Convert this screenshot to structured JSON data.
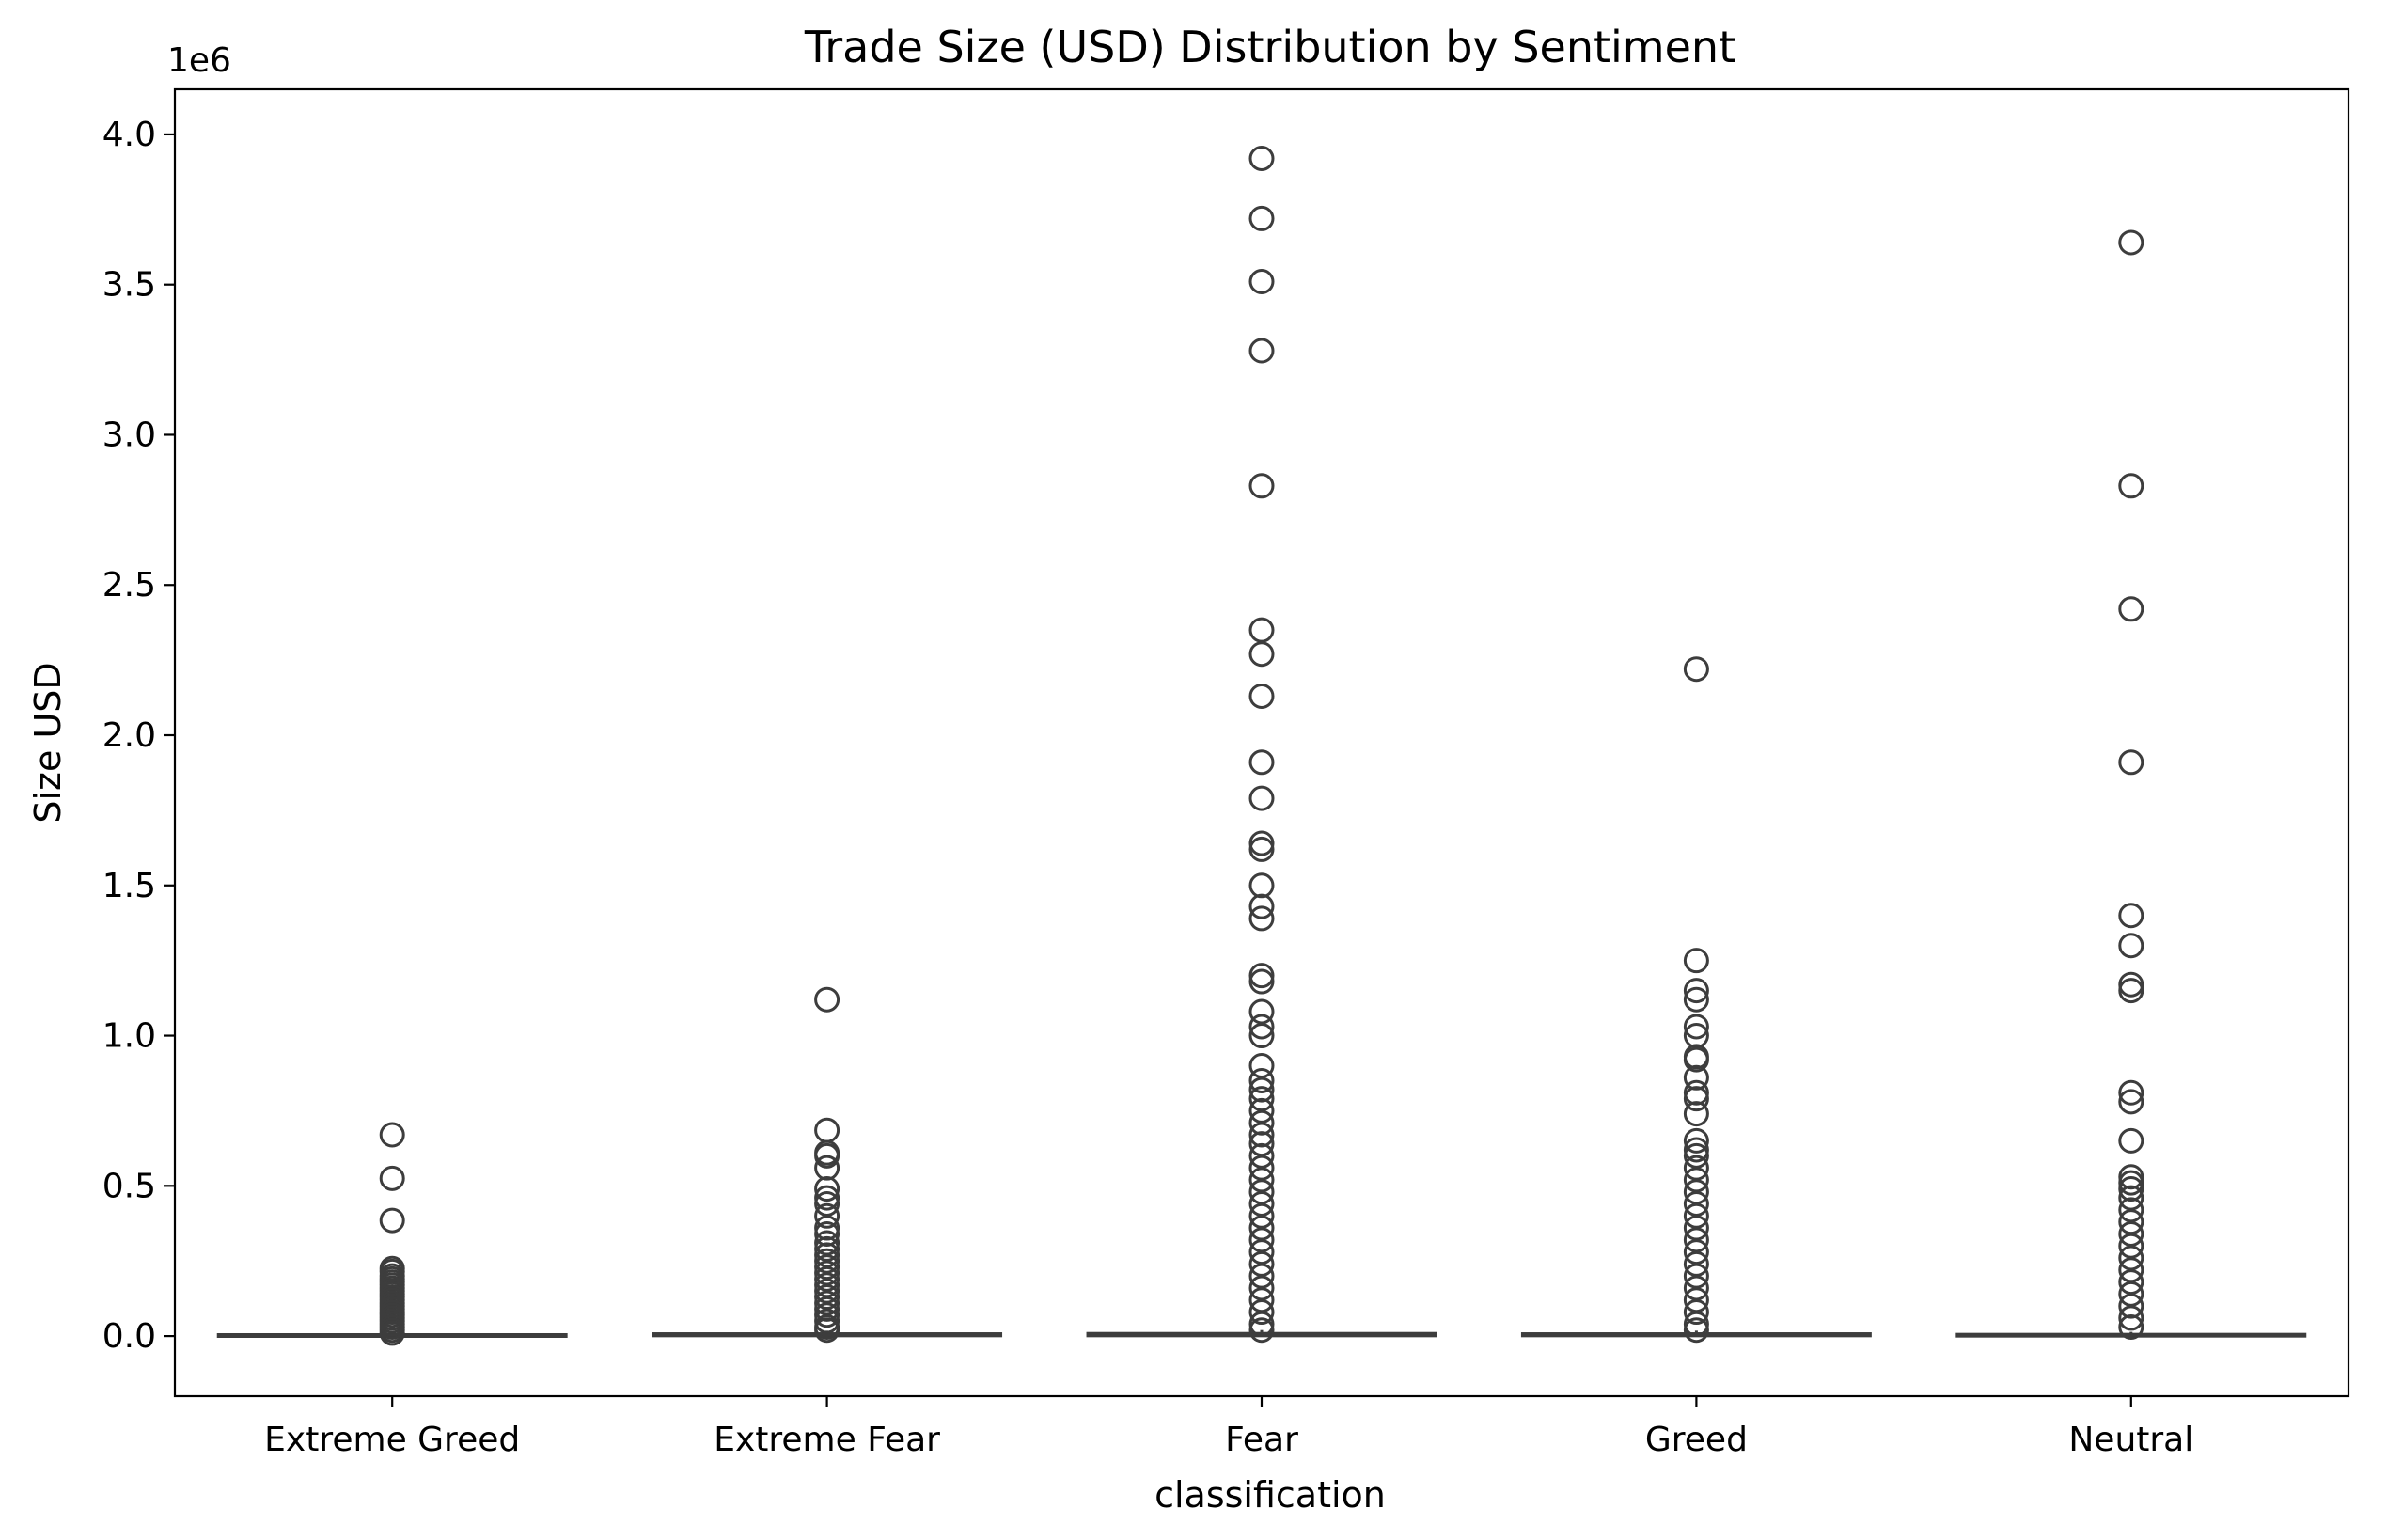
{
  "chart_data": {
    "type": "box",
    "title": "Trade Size (USD) Distribution by Sentiment",
    "xlabel": "classification",
    "ylabel": "Size USD",
    "y_offset_label": "1e6",
    "y_unit_multiplier": 1000000,
    "ylim": [
      -0.2,
      4.15
    ],
    "yticks": [
      {
        "value": 0.0,
        "label": "0.0"
      },
      {
        "value": 0.5,
        "label": "0.5"
      },
      {
        "value": 1.0,
        "label": "1.0"
      },
      {
        "value": 1.5,
        "label": "1.5"
      },
      {
        "value": 2.0,
        "label": "2.0"
      },
      {
        "value": 2.5,
        "label": "2.5"
      },
      {
        "value": 3.0,
        "label": "3.0"
      },
      {
        "value": 3.5,
        "label": "3.5"
      },
      {
        "value": 4.0,
        "label": "4.0"
      }
    ],
    "grid": false,
    "colors": {
      "box_edge": "#3d3d3d",
      "axes": "#000000"
    },
    "categories": [
      "Extreme Greed",
      "Extreme Fear",
      "Fear",
      "Greed",
      "Neutral"
    ],
    "boxes": [
      {
        "category": "Extreme Greed",
        "q1": 0.0006,
        "median": 0.0015,
        "q3": 0.005,
        "whisker_low": 0.0,
        "whisker_high": 0.012,
        "outliers": [
          0.67,
          0.525,
          0.385,
          0.225,
          0.215,
          0.2,
          0.19,
          0.18,
          0.17,
          0.16,
          0.15,
          0.14,
          0.13,
          0.12,
          0.11,
          0.1,
          0.09,
          0.08,
          0.07,
          0.06,
          0.05,
          0.04,
          0.03,
          0.02,
          0.01
        ]
      },
      {
        "category": "Extreme Fear",
        "q1": 0.0008,
        "median": 0.002,
        "q3": 0.008,
        "whisker_low": 0.0,
        "whisker_high": 0.018,
        "outliers": [
          1.12,
          0.685,
          0.61,
          0.6,
          0.56,
          0.49,
          0.46,
          0.44,
          0.4,
          0.36,
          0.34,
          0.31,
          0.29,
          0.27,
          0.25,
          0.23,
          0.21,
          0.19,
          0.17,
          0.15,
          0.13,
          0.11,
          0.09,
          0.07,
          0.05,
          0.03,
          0.02
        ]
      },
      {
        "category": "Fear",
        "q1": 0.0008,
        "median": 0.002,
        "q3": 0.009,
        "whisker_low": 0.0,
        "whisker_high": 0.02,
        "outliers": [
          3.92,
          3.72,
          3.51,
          3.28,
          2.83,
          2.35,
          2.27,
          2.13,
          1.91,
          1.79,
          1.64,
          1.62,
          1.5,
          1.43,
          1.39,
          1.2,
          1.18,
          1.08,
          1.03,
          1.0,
          0.9,
          0.85,
          0.82,
          0.79,
          0.75,
          0.71,
          0.67,
          0.64,
          0.6,
          0.56,
          0.52,
          0.48,
          0.44,
          0.4,
          0.36,
          0.32,
          0.28,
          0.24,
          0.2,
          0.16,
          0.12,
          0.08,
          0.04,
          0.02
        ]
      },
      {
        "category": "Greed",
        "q1": 0.0008,
        "median": 0.002,
        "q3": 0.008,
        "whisker_low": 0.0,
        "whisker_high": 0.018,
        "outliers": [
          2.22,
          1.25,
          1.15,
          1.12,
          1.03,
          1.0,
          0.93,
          0.92,
          0.86,
          0.81,
          0.79,
          0.74,
          0.65,
          0.62,
          0.6,
          0.56,
          0.52,
          0.48,
          0.44,
          0.4,
          0.36,
          0.32,
          0.28,
          0.24,
          0.2,
          0.16,
          0.12,
          0.08,
          0.04,
          0.02
        ]
      },
      {
        "category": "Neutral",
        "q1": 0.0006,
        "median": 0.0015,
        "q3": 0.006,
        "whisker_low": 0.0,
        "whisker_high": 0.014,
        "outliers": [
          3.64,
          2.83,
          2.42,
          1.91,
          1.4,
          1.3,
          1.17,
          1.15,
          0.81,
          0.78,
          0.65,
          0.53,
          0.51,
          0.49,
          0.46,
          0.42,
          0.38,
          0.34,
          0.3,
          0.26,
          0.22,
          0.18,
          0.14,
          0.1,
          0.06,
          0.03
        ]
      }
    ]
  }
}
